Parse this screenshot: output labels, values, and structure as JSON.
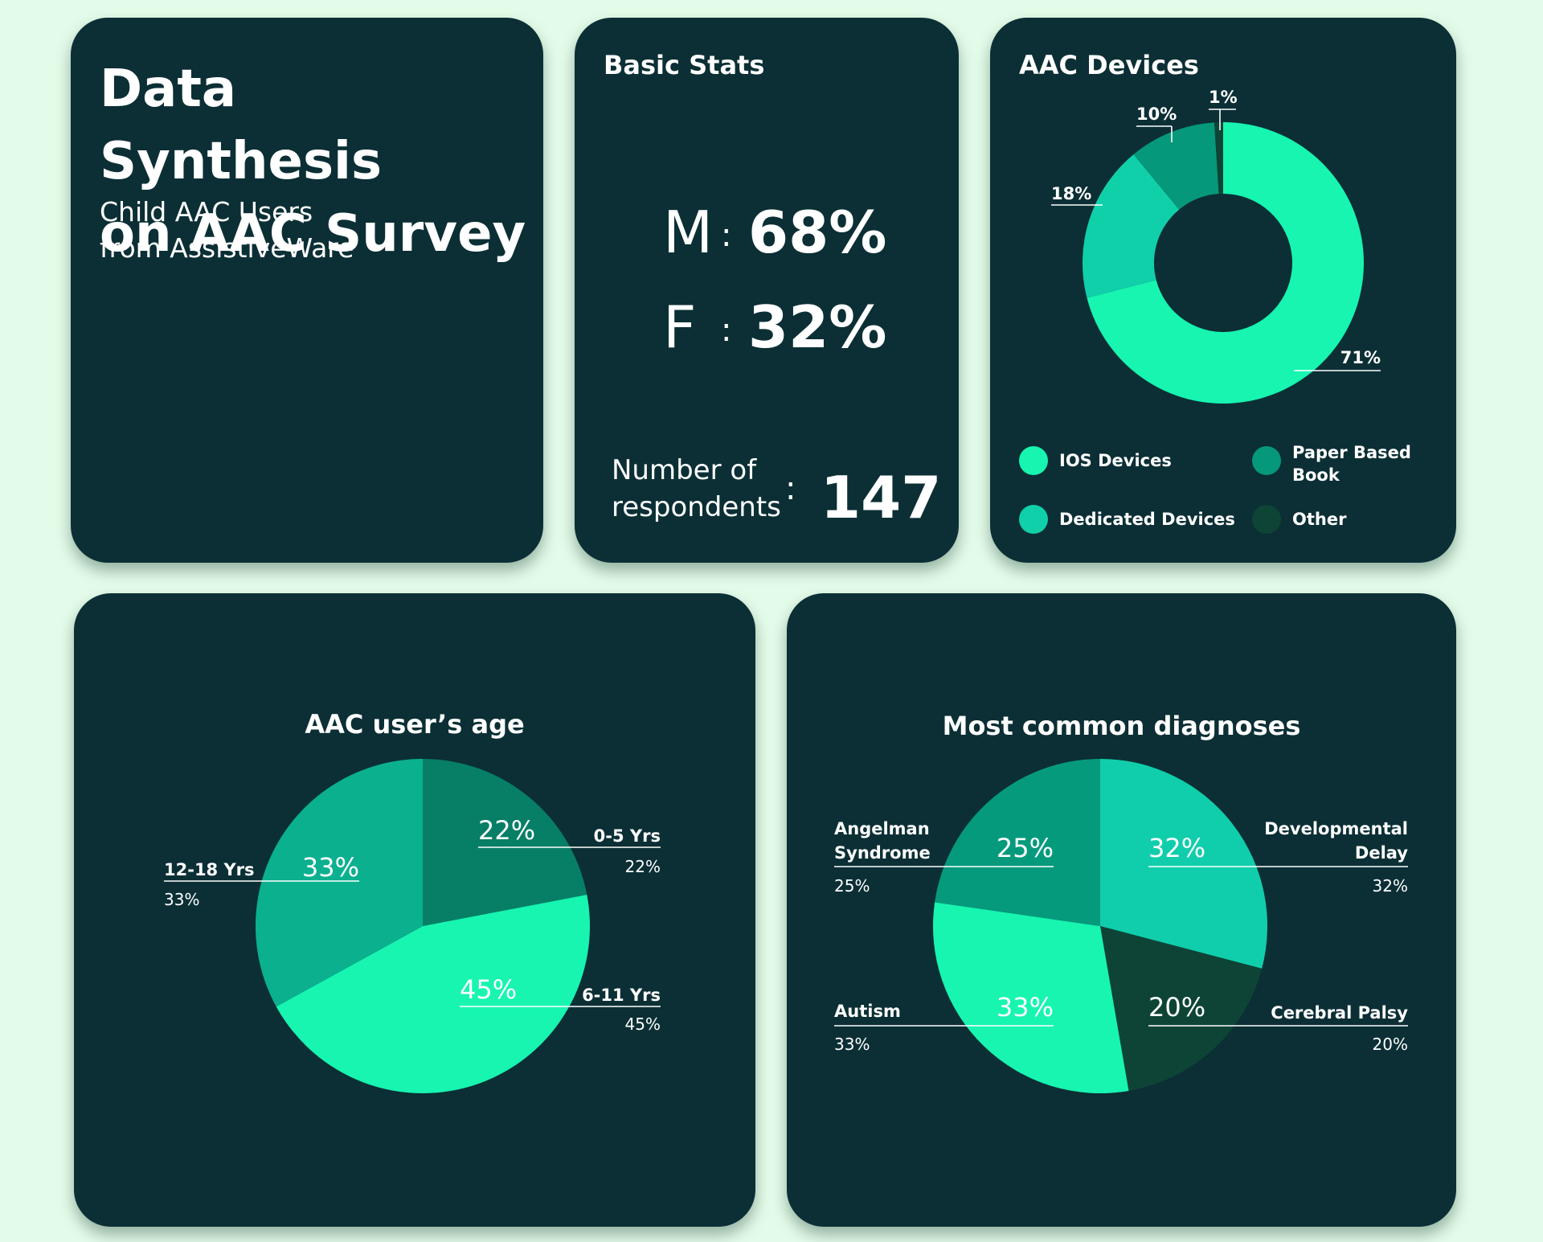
{
  "title_card": {
    "title_line1": "Data Synthesis",
    "title_line2": "on AAC Survey",
    "subtitle_line1": "Child AAC Users",
    "subtitle_line2": "from AssistiveWare"
  },
  "stats_card": {
    "heading": "Basic Stats",
    "male_label": "M",
    "male_value": "68%",
    "female_label": "F",
    "female_value": "32%",
    "colon": ":",
    "respondents_label_line1": "Number of",
    "respondents_label_line2": "respondents",
    "respondents_value": "147"
  },
  "colors": {
    "background": "#e3fbe9",
    "card": "#0b2f35",
    "ios": "#17f5b1",
    "dedicated": "#10d0aa",
    "paper": "#06987a",
    "other": "#0d4436",
    "age_0_5": "#077f66",
    "age_6_11": "#17f5b1",
    "age_12_18": "#0bb08f",
    "diag_angelman": "#069a7c",
    "diag_devdelay": "#10ceab",
    "diag_cerebral": "#0d4436",
    "diag_autism": "#17f5b1"
  },
  "chart_data": [
    {
      "type": "pie",
      "variant": "donut",
      "title": "AAC Devices",
      "legend": "bottom",
      "slices": [
        {
          "name": "IOS Devices",
          "legend_label": "IOS Devices",
          "value": 71,
          "label": "71%",
          "color": "#17f5b1"
        },
        {
          "name": "Dedicated Devices",
          "legend_label": "Dedicated Devices",
          "value": 18,
          "label": "18%",
          "color": "#10d0aa"
        },
        {
          "name": "Paper Based Book",
          "legend_label": "Paper Based Book",
          "value": 10,
          "label": "10%",
          "color": "#06987a"
        },
        {
          "name": "Other",
          "legend_label": "Other",
          "value": 1,
          "label": "1%",
          "color": "#0d4436"
        }
      ]
    },
    {
      "type": "pie",
      "title": "AAC user’s age",
      "slices": [
        {
          "name": "0-5 Yrs",
          "value": 22,
          "label": "22%",
          "color": "#077f66"
        },
        {
          "name": "6-11 Yrs",
          "value": 45,
          "label": "45%",
          "color": "#17f5b1"
        },
        {
          "name": "12-18 Yrs",
          "value": 33,
          "label": "33%",
          "color": "#0bb08f"
        }
      ]
    },
    {
      "type": "pie",
      "title": "Most common diagnoses",
      "slices": [
        {
          "name": "Developmental Delay",
          "value": 32,
          "label": "32%",
          "color": "#10ceab"
        },
        {
          "name": "Cerebral Palsy",
          "value": 20,
          "label": "20%",
          "color": "#0d4436"
        },
        {
          "name": "Autism",
          "value": 33,
          "label": "33%",
          "color": "#17f5b1"
        },
        {
          "name": "Angelman Syndrome",
          "value": 25,
          "label": "25%",
          "color": "#069a7c"
        }
      ]
    }
  ]
}
